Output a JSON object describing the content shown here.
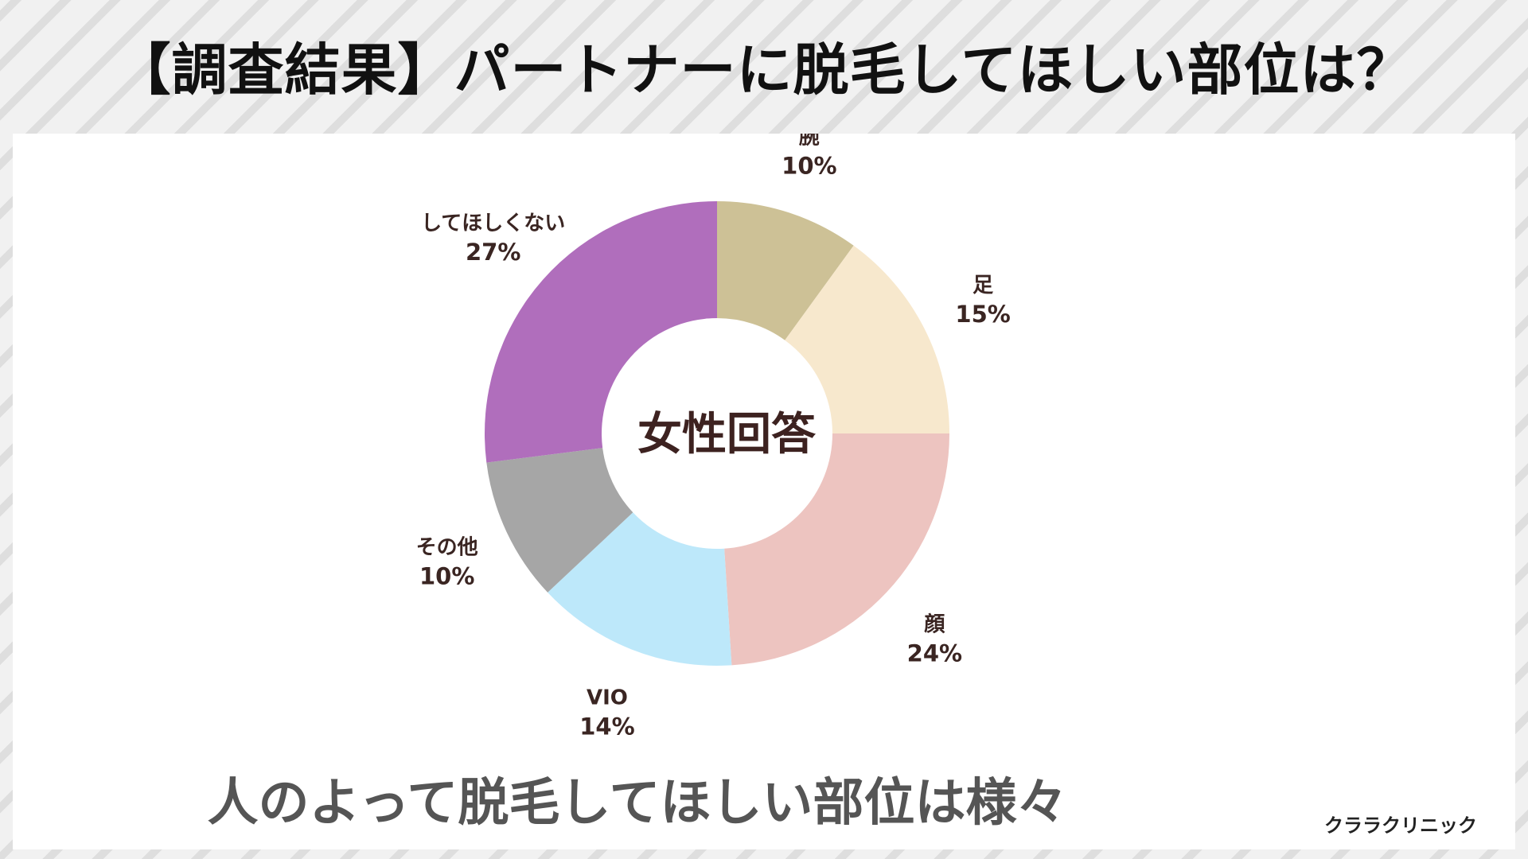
{
  "title": "【調査結果】パートナーに脱毛してほしい部位は？",
  "chart_data": {
    "type": "pie",
    "variant": "donut",
    "center_label": "女性回答",
    "start": "top",
    "direction": "clockwise",
    "slices": [
      {
        "label": "腕",
        "value": 10,
        "display": "10%",
        "color": "#cdc196"
      },
      {
        "label": "足",
        "value": 15,
        "display": "15%",
        "color": "#f7e8cd"
      },
      {
        "label": "顔",
        "value": 24,
        "display": "24%",
        "color": "#edc4c0"
      },
      {
        "label": "VIO",
        "value": 14,
        "display": "14%",
        "color": "#bde8fa"
      },
      {
        "label": "その他",
        "value": 10,
        "display": "10%",
        "color": "#a6a6a6"
      },
      {
        "label": "してほしくない",
        "value": 27,
        "display": "27%",
        "color": "#b06ebc"
      }
    ]
  },
  "footer": {
    "message": "人のよって脱毛してほしい部位は様々",
    "brand": "クララクリニック"
  }
}
